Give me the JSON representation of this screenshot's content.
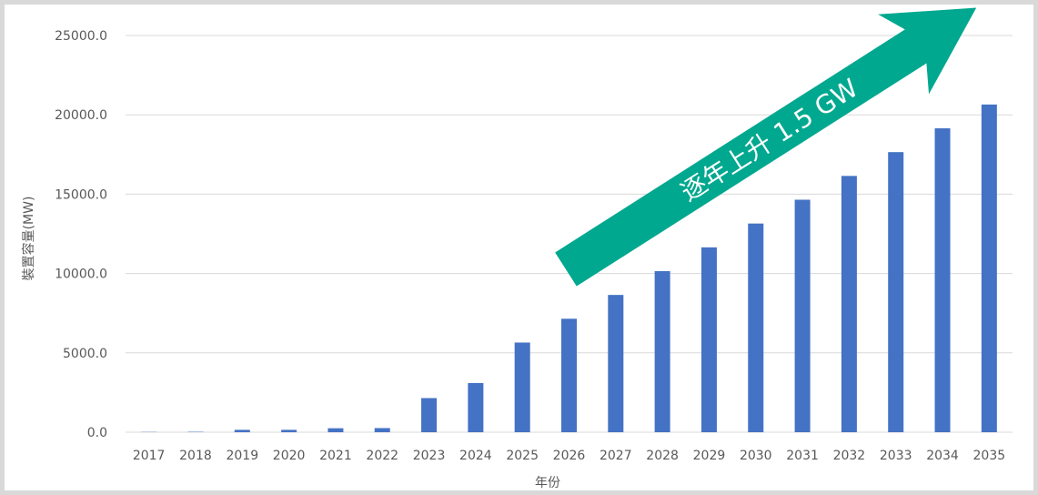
{
  "chart_data": {
    "type": "bar",
    "categories": [
      "2017",
      "2018",
      "2019",
      "2020",
      "2021",
      "2022",
      "2023",
      "2024",
      "2025",
      "2026",
      "2027",
      "2028",
      "2029",
      "2030",
      "2031",
      "2032",
      "2033",
      "2034",
      "2035"
    ],
    "values": [
      15,
      25,
      150,
      150,
      250,
      260,
      2150,
      3100,
      5650,
      7150,
      8650,
      10150,
      11650,
      13150,
      14650,
      16150,
      17650,
      19150,
      20650
    ],
    "y_tick_labels": [
      "0.0",
      "5000.0",
      "10000.0",
      "15000.0",
      "20000.0",
      "25000.0"
    ],
    "ylim": [
      0,
      25000
    ],
    "xlabel": "年份",
    "ylabel": "裝置容量(MW)",
    "grid": true,
    "annotation": "逐年上升 1.5 GW",
    "colors": {
      "bar": "#4472c4",
      "arrow": "#00a88f",
      "grid": "#d9d9d9",
      "text": "#595959"
    }
  }
}
